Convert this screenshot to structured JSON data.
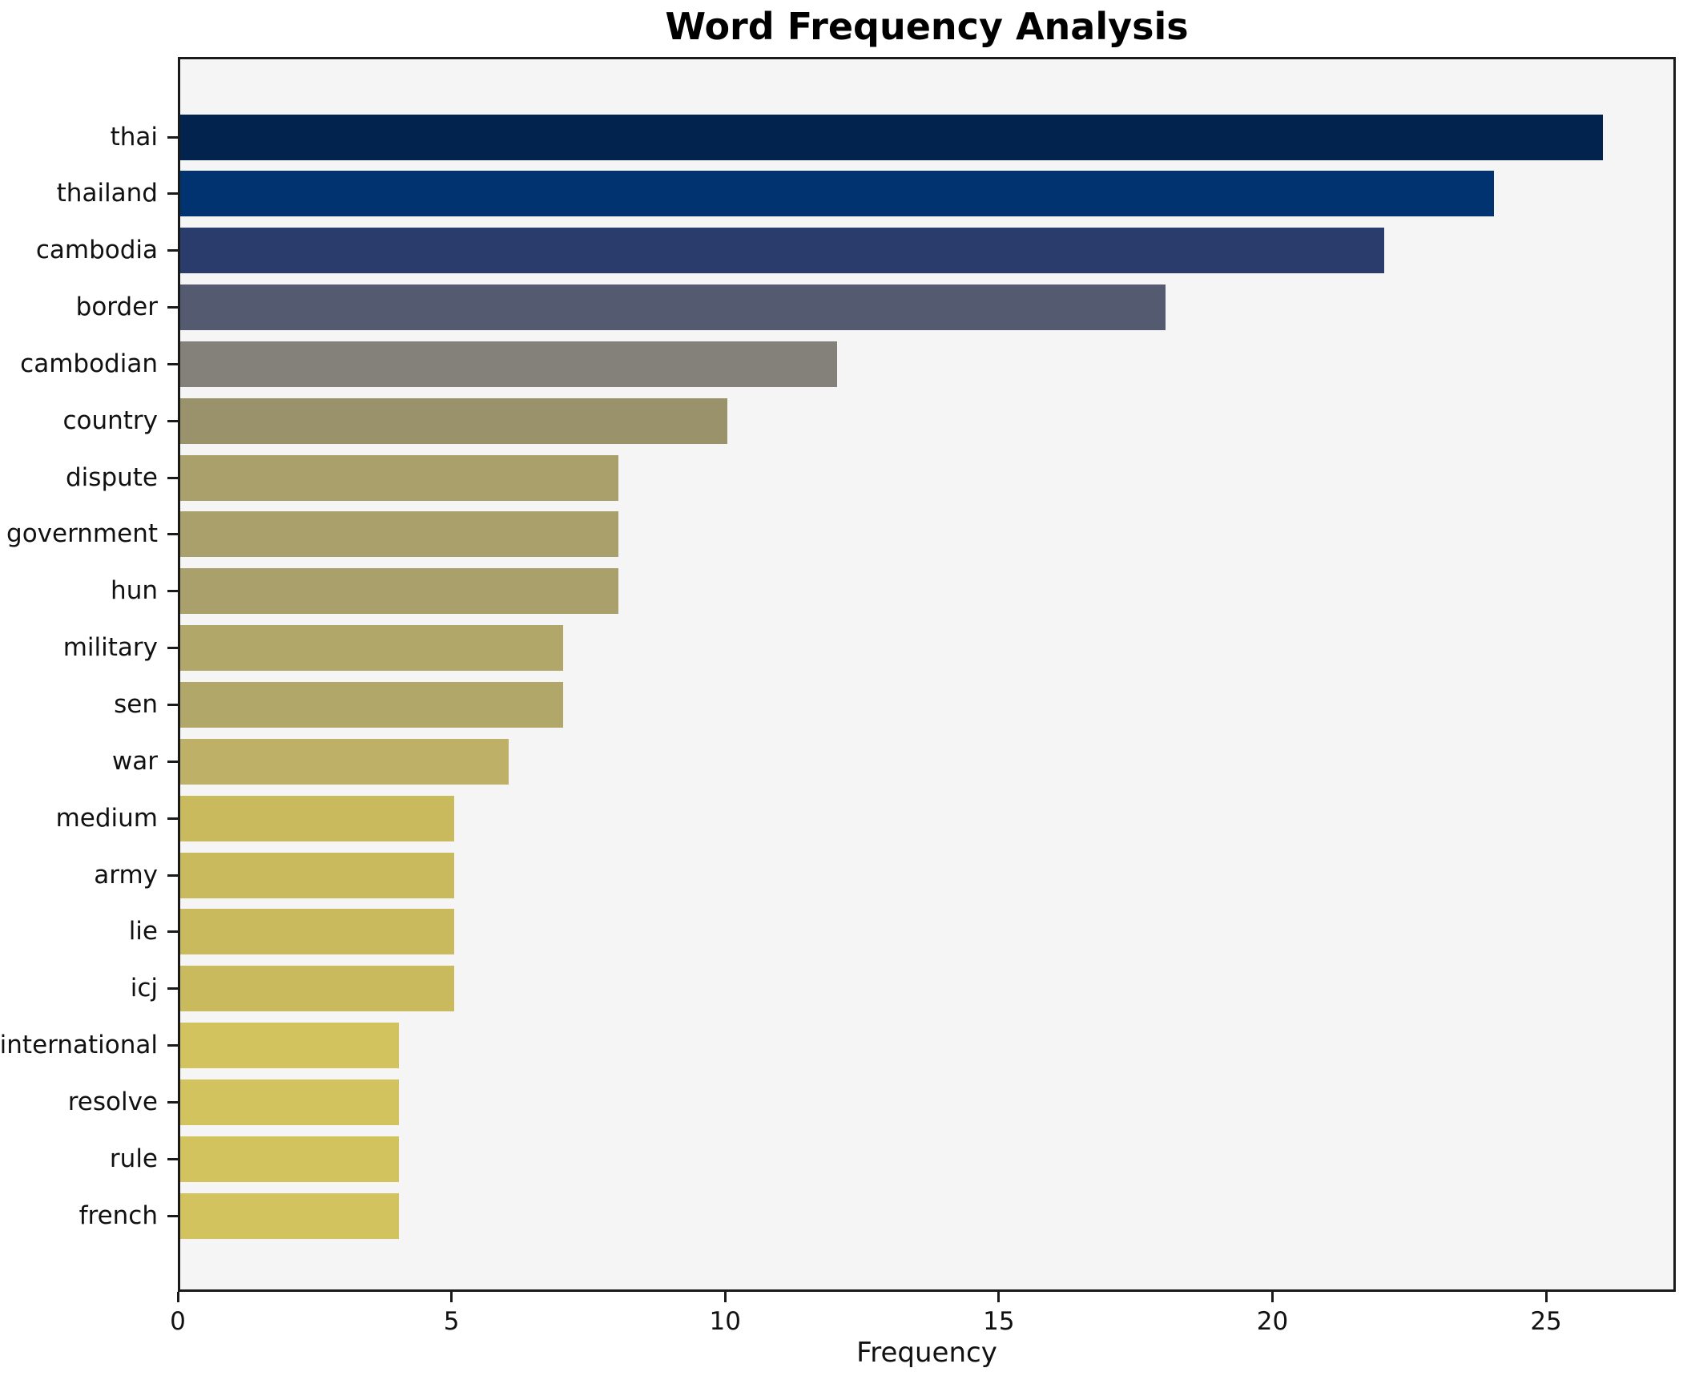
{
  "chart_data": {
    "type": "bar",
    "orientation": "horizontal",
    "title": "Word Frequency Analysis",
    "xlabel": "Frequency",
    "ylabel": "",
    "categories": [
      "thai",
      "thailand",
      "cambodia",
      "border",
      "cambodian",
      "country",
      "dispute",
      "government",
      "hun",
      "military",
      "sen",
      "war",
      "medium",
      "army",
      "lie",
      "icj",
      "international",
      "resolve",
      "rule",
      "french"
    ],
    "values": [
      26,
      24,
      22,
      18,
      12,
      10,
      8,
      8,
      8,
      7,
      7,
      6,
      5,
      5,
      5,
      5,
      4,
      4,
      4,
      4
    ],
    "bar_colors": [
      "#02234e",
      "#013370",
      "#2a3c6b",
      "#545b70",
      "#84817a",
      "#99926a",
      "#a9a06c",
      "#a9a06c",
      "#a9a06c",
      "#b1a768",
      "#b1a768",
      "#bfb067",
      "#c9ba5e",
      "#c9ba5e",
      "#c9ba5e",
      "#c9ba5e",
      "#d2c35e",
      "#d2c35e",
      "#d2c35e",
      "#d2c35e"
    ],
    "xticks": [
      0,
      5,
      10,
      15,
      20,
      25
    ],
    "xlim": [
      0,
      27.37
    ],
    "grid": false,
    "legend": null,
    "plot_background": "#f5f5f5",
    "page_background": "#ffffff",
    "spine_color": "#1a1a1a"
  }
}
